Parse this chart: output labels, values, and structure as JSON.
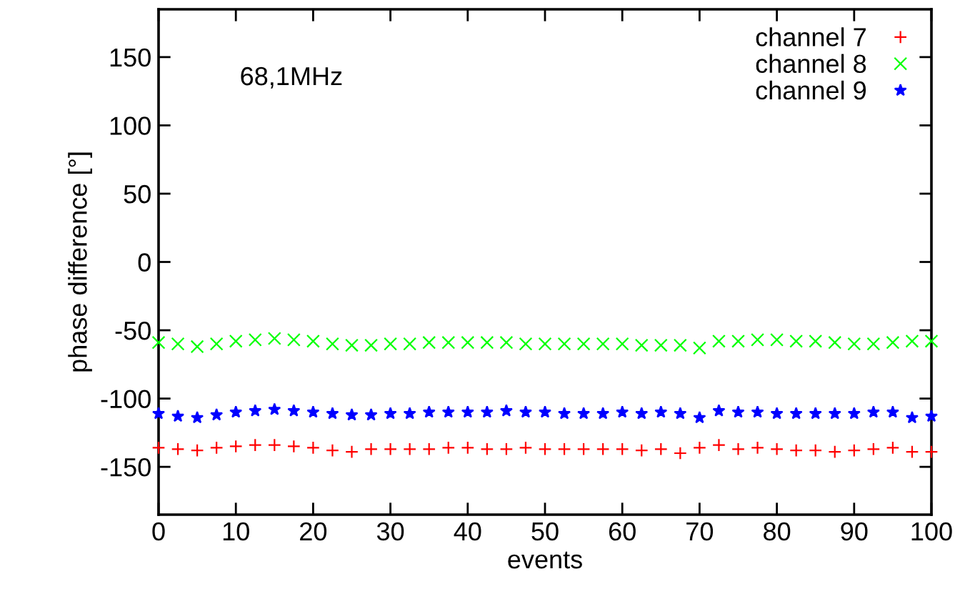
{
  "chart_data": {
    "type": "scatter",
    "xlabel": "events",
    "ylabel": "phase difference [°]",
    "annotations": [
      "68,1MHz"
    ],
    "xlim": [
      0,
      100
    ],
    "xticks": [
      0,
      10,
      20,
      30,
      40,
      50,
      60,
      70,
      80,
      90,
      100
    ],
    "ylim": [
      -185,
      185
    ],
    "yticks": [
      -150,
      -100,
      -50,
      0,
      50,
      100,
      150
    ],
    "grid": false,
    "legend": "top right",
    "x": [
      0,
      2.5,
      5,
      7.5,
      10,
      12.5,
      15,
      17.5,
      20,
      22.5,
      25,
      27.5,
      30,
      32.5,
      35,
      37.5,
      40,
      42.5,
      45,
      47.5,
      50,
      52.5,
      55,
      57.5,
      60,
      62.5,
      65,
      67.5,
      70,
      72.5,
      75,
      77.5,
      80,
      82.5,
      85,
      87.5,
      90,
      92.5,
      95,
      97.5,
      100
    ],
    "series": [
      {
        "name": "channel 7",
        "color": "#ff0000",
        "marker": "plus",
        "values": [
          -136,
          -137,
          -138,
          -136,
          -135,
          -134,
          -134,
          -135,
          -136,
          -138,
          -139,
          -137,
          -137,
          -137,
          -137,
          -136,
          -136,
          -137,
          -137,
          -136,
          -137,
          -137,
          -137,
          -137,
          -137,
          -138,
          -137,
          -140,
          -136,
          -134,
          -137,
          -136,
          -137,
          -138,
          -138,
          -139,
          -138,
          -137,
          -136,
          -139,
          -139
        ]
      },
      {
        "name": "channel 8",
        "color": "#00ff00",
        "marker": "cross",
        "values": [
          -59,
          -60,
          -62,
          -60,
          -58,
          -57,
          -56,
          -57,
          -58,
          -60,
          -61,
          -61,
          -60,
          -60,
          -59,
          -59,
          -59,
          -59,
          -59,
          -60,
          -60,
          -60,
          -60,
          -60,
          -60,
          -61,
          -61,
          -61,
          -63,
          -58,
          -58,
          -57,
          -57,
          -58,
          -58,
          -59,
          -60,
          -60,
          -59,
          -58,
          -58
        ]
      },
      {
        "name": "channel 9",
        "color": "#0000ff",
        "marker": "star",
        "values": [
          -111,
          -113,
          -114,
          -112,
          -110,
          -109,
          -108,
          -109,
          -110,
          -111,
          -112,
          -112,
          -111,
          -111,
          -110,
          -110,
          -110,
          -110,
          -109,
          -110,
          -110,
          -111,
          -111,
          -111,
          -110,
          -111,
          -110,
          -111,
          -114,
          -109,
          -110,
          -110,
          -111,
          -111,
          -111,
          -111,
          -111,
          -110,
          -110,
          -114,
          -113
        ]
      }
    ]
  }
}
